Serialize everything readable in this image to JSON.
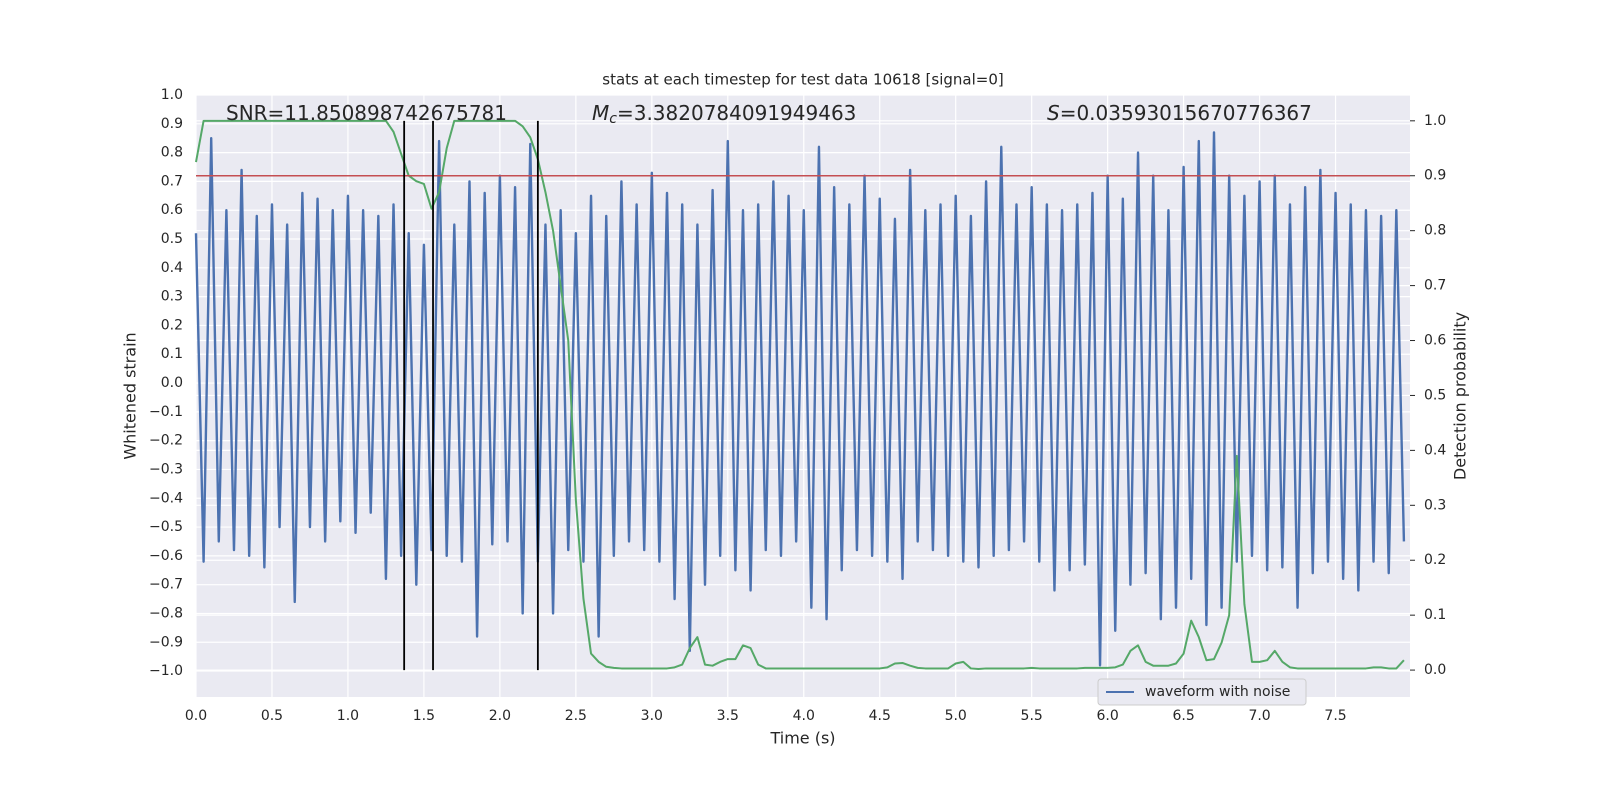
{
  "chart_data": {
    "type": "line",
    "title": "stats at each timestep for test data 10618 [signal=0]",
    "xlabel": "Time (s)",
    "ylabel": "Whitened strain",
    "y2label": "Detection probability",
    "xlim": [
      0,
      7.99
    ],
    "ylim": [
      -1.09,
      1.0
    ],
    "y2lim": [
      -0.049,
      1.047
    ],
    "xticks": [
      {
        "value": 0,
        "label": "0.0"
      },
      {
        "value": 0.5,
        "label": "0.5"
      },
      {
        "value": 1,
        "label": "1.0"
      },
      {
        "value": 1.5,
        "label": "1.5"
      },
      {
        "value": 2,
        "label": "2.0"
      },
      {
        "value": 2.5,
        "label": "2.5"
      },
      {
        "value": 3,
        "label": "3.0"
      },
      {
        "value": 3.5,
        "label": "3.5"
      },
      {
        "value": 4,
        "label": "4.0"
      },
      {
        "value": 4.5,
        "label": "4.5"
      },
      {
        "value": 5,
        "label": "5.0"
      },
      {
        "value": 5.5,
        "label": "5.5"
      },
      {
        "value": 6,
        "label": "6.0"
      },
      {
        "value": 6.5,
        "label": "6.5"
      },
      {
        "value": 7,
        "label": "7.0"
      },
      {
        "value": 7.5,
        "label": "7.5"
      }
    ],
    "yticks": [
      {
        "value": -1.0,
        "label": "−1.0"
      },
      {
        "value": -0.9,
        "label": "−0.9"
      },
      {
        "value": -0.8,
        "label": "−0.8"
      },
      {
        "value": -0.7,
        "label": "−0.7"
      },
      {
        "value": -0.6,
        "label": "−0.6"
      },
      {
        "value": -0.5,
        "label": "−0.5"
      },
      {
        "value": -0.4,
        "label": "−0.4"
      },
      {
        "value": -0.3,
        "label": "−0.3"
      },
      {
        "value": -0.2,
        "label": "−0.2"
      },
      {
        "value": -0.1,
        "label": "−0.1"
      },
      {
        "value": 0,
        "label": "0.0"
      },
      {
        "value": 0.1,
        "label": "0.1"
      },
      {
        "value": 0.2,
        "label": "0.2"
      },
      {
        "value": 0.3,
        "label": "0.3"
      },
      {
        "value": 0.4,
        "label": "0.4"
      },
      {
        "value": 0.5,
        "label": "0.5"
      },
      {
        "value": 0.6,
        "label": "0.6"
      },
      {
        "value": 0.7,
        "label": "0.7"
      },
      {
        "value": 0.8,
        "label": "0.8"
      },
      {
        "value": 0.9,
        "label": "0.9"
      },
      {
        "value": 1.0,
        "label": "1.0"
      }
    ],
    "y2ticks": [
      {
        "value": 0,
        "label": "0.0"
      },
      {
        "value": 0.1,
        "label": "0.1"
      },
      {
        "value": 0.2,
        "label": "0.2"
      },
      {
        "value": 0.3,
        "label": "0.3"
      },
      {
        "value": 0.4,
        "label": "0.4"
      },
      {
        "value": 0.5,
        "label": "0.5"
      },
      {
        "value": 0.6,
        "label": "0.6"
      },
      {
        "value": 0.7,
        "label": "0.7"
      },
      {
        "value": 0.8,
        "label": "0.8"
      },
      {
        "value": 0.9,
        "label": "0.9"
      },
      {
        "value": 1.0,
        "label": "1.0"
      }
    ],
    "grid": true,
    "legend": "lower right",
    "x": [
      0,
      0.05,
      0.1,
      0.15,
      0.2,
      0.25,
      0.3,
      0.35,
      0.4,
      0.45,
      0.5,
      0.55,
      0.6,
      0.65,
      0.7,
      0.75,
      0.8,
      0.85,
      0.9,
      0.95,
      1,
      1.05,
      1.1,
      1.15,
      1.2,
      1.25,
      1.3,
      1.35,
      1.4,
      1.45,
      1.5,
      1.55,
      1.6,
      1.65,
      1.7,
      1.75,
      1.8,
      1.85,
      1.9,
      1.95,
      2,
      2.05,
      2.1,
      2.15,
      2.2,
      2.25,
      2.3,
      2.35,
      2.4,
      2.45,
      2.5,
      2.55,
      2.6,
      2.65,
      2.7,
      2.75,
      2.8,
      2.85,
      2.9,
      2.95,
      3,
      3.05,
      3.1,
      3.15,
      3.2,
      3.25,
      3.3,
      3.35,
      3.4,
      3.45,
      3.5,
      3.55,
      3.6,
      3.65,
      3.7,
      3.75,
      3.8,
      3.85,
      3.9,
      3.95,
      4,
      4.05,
      4.1,
      4.15,
      4.2,
      4.25,
      4.3,
      4.35,
      4.4,
      4.45,
      4.5,
      4.55,
      4.6,
      4.65,
      4.7,
      4.75,
      4.8,
      4.85,
      4.9,
      4.95,
      5,
      5.05,
      5.1,
      5.15,
      5.2,
      5.25,
      5.3,
      5.35,
      5.4,
      5.45,
      5.5,
      5.55,
      5.6,
      5.65,
      5.7,
      5.75,
      5.8,
      5.85,
      5.9,
      5.95,
      6,
      6.05,
      6.1,
      6.15,
      6.2,
      6.25,
      6.3,
      6.35,
      6.4,
      6.45,
      6.5,
      6.55,
      6.6,
      6.65,
      6.7,
      6.75,
      6.8,
      6.85,
      6.9,
      6.95,
      7,
      7.05,
      7.1,
      7.15,
      7.2,
      7.25,
      7.3,
      7.35,
      7.4,
      7.45,
      7.5,
      7.55,
      7.6,
      7.65,
      7.7,
      7.75,
      7.8,
      7.85,
      7.9,
      7.95
    ],
    "series": [
      {
        "name": "waveform with noise",
        "color": "#4c72b0",
        "values": [
          0.52,
          -0.62,
          0.85,
          -0.55,
          0.6,
          -0.58,
          0.74,
          -0.6,
          0.58,
          -0.64,
          0.62,
          -0.5,
          0.55,
          -0.76,
          0.66,
          -0.5,
          0.64,
          -0.55,
          0.6,
          -0.48,
          0.65,
          -0.52,
          0.6,
          -0.45,
          0.58,
          -0.68,
          0.62,
          -0.6,
          0.52,
          -0.7,
          0.48,
          -0.58,
          0.84,
          -0.6,
          0.55,
          -0.62,
          0.7,
          -0.88,
          0.66,
          -0.56,
          0.72,
          -0.55,
          0.68,
          -0.8,
          0.83,
          -0.62,
          0.55,
          -0.8,
          0.6,
          -0.58,
          0.52,
          -0.62,
          0.65,
          -0.88,
          0.58,
          -0.6,
          0.7,
          -0.55,
          0.62,
          -0.58,
          0.73,
          -0.62,
          0.66,
          -0.75,
          0.62,
          -0.93,
          0.55,
          -0.7,
          0.67,
          -0.6,
          0.84,
          -0.65,
          0.6,
          -0.72,
          0.62,
          -0.58,
          0.7,
          -0.6,
          0.65,
          -0.55,
          0.6,
          -0.78,
          0.82,
          -0.82,
          0.68,
          -0.65,
          0.62,
          -0.58,
          0.72,
          -0.6,
          0.64,
          -0.62,
          0.57,
          -0.68,
          0.74,
          -0.55,
          0.6,
          -0.58,
          0.62,
          -0.6,
          0.65,
          -0.62,
          0.58,
          -0.64,
          0.7,
          -0.6,
          0.82,
          -0.58,
          0.62,
          -0.55,
          0.68,
          -0.62,
          0.62,
          -0.72,
          0.6,
          -0.65,
          0.62,
          -0.63,
          0.66,
          -0.98,
          0.72,
          -0.86,
          0.64,
          -0.7,
          0.8,
          -0.66,
          0.72,
          -0.82,
          0.6,
          -0.78,
          0.75,
          -0.68,
          0.84,
          -0.84,
          0.87,
          -0.78,
          0.72,
          -0.62,
          0.65,
          -0.6,
          0.7,
          -0.65,
          0.72,
          -0.64,
          0.62,
          -0.78,
          0.68,
          -0.66,
          0.74,
          -0.62,
          0.66,
          -0.68,
          0.62,
          -0.72,
          0.6,
          -0.62,
          0.58,
          -0.66,
          0.6,
          -0.55
        ]
      },
      {
        "color": "#55a868",
        "axis": "y2",
        "values": [
          0.925,
          1,
          1,
          1,
          1,
          1,
          1,
          1,
          1,
          1,
          1,
          1,
          1,
          1,
          1,
          1,
          1,
          1,
          1,
          1,
          1,
          1,
          1,
          1,
          1,
          1,
          0.98,
          0.94,
          0.9,
          0.89,
          0.885,
          0.84,
          0.87,
          0.95,
          1,
          1,
          1,
          1,
          1,
          1,
          1,
          1,
          1,
          0.99,
          0.97,
          0.93,
          0.87,
          0.8,
          0.7,
          0.6,
          0.31,
          0.13,
          0.03,
          0.015,
          0.006,
          0.004,
          0.003,
          0.003,
          0.003,
          0.003,
          0.003,
          0.003,
          0.003,
          0.005,
          0.01,
          0.04,
          0.06,
          0.01,
          0.008,
          0.015,
          0.02,
          0.02,
          0.045,
          0.04,
          0.01,
          0.003,
          0.003,
          0.003,
          0.003,
          0.003,
          0.003,
          0.003,
          0.003,
          0.003,
          0.003,
          0.003,
          0.003,
          0.003,
          0.003,
          0.003,
          0.003,
          0.005,
          0.012,
          0.013,
          0.008,
          0.004,
          0.003,
          0.003,
          0.003,
          0.003,
          0.012,
          0.015,
          0.003,
          0.002,
          0.003,
          0.003,
          0.003,
          0.003,
          0.003,
          0.003,
          0.004,
          0.003,
          0.003,
          0.003,
          0.003,
          0.003,
          0.003,
          0.004,
          0.004,
          0.004,
          0.004,
          0.005,
          0.01,
          0.035,
          0.045,
          0.015,
          0.008,
          0.008,
          0.008,
          0.012,
          0.03,
          0.09,
          0.06,
          0.018,
          0.02,
          0.05,
          0.1,
          0.39,
          0.12,
          0.015,
          0.015,
          0.018,
          0.035,
          0.015,
          0.005,
          0.003,
          0.003,
          0.003,
          0.003,
          0.003,
          0.003,
          0.003,
          0.003,
          0.003,
          0.003,
          0.005,
          0.005,
          0.003,
          0.003,
          0.018
        ]
      }
    ],
    "hlines": [
      {
        "value": 0.9,
        "axis": "y2",
        "color": "#c44e52"
      }
    ],
    "vlines": {
      "values": [
        1.37,
        1.56,
        2.25
      ],
      "y2range": [
        0,
        1.0
      ],
      "color": "#000000"
    },
    "annotations": [
      {
        "text": "SNR=11.850898742675781"
      },
      {
        "symbol": "M",
        "subscript": "c",
        "text": "=3.3820784091949463"
      },
      {
        "symbol": "S",
        "text": "=0.03593015670776367"
      }
    ]
  }
}
